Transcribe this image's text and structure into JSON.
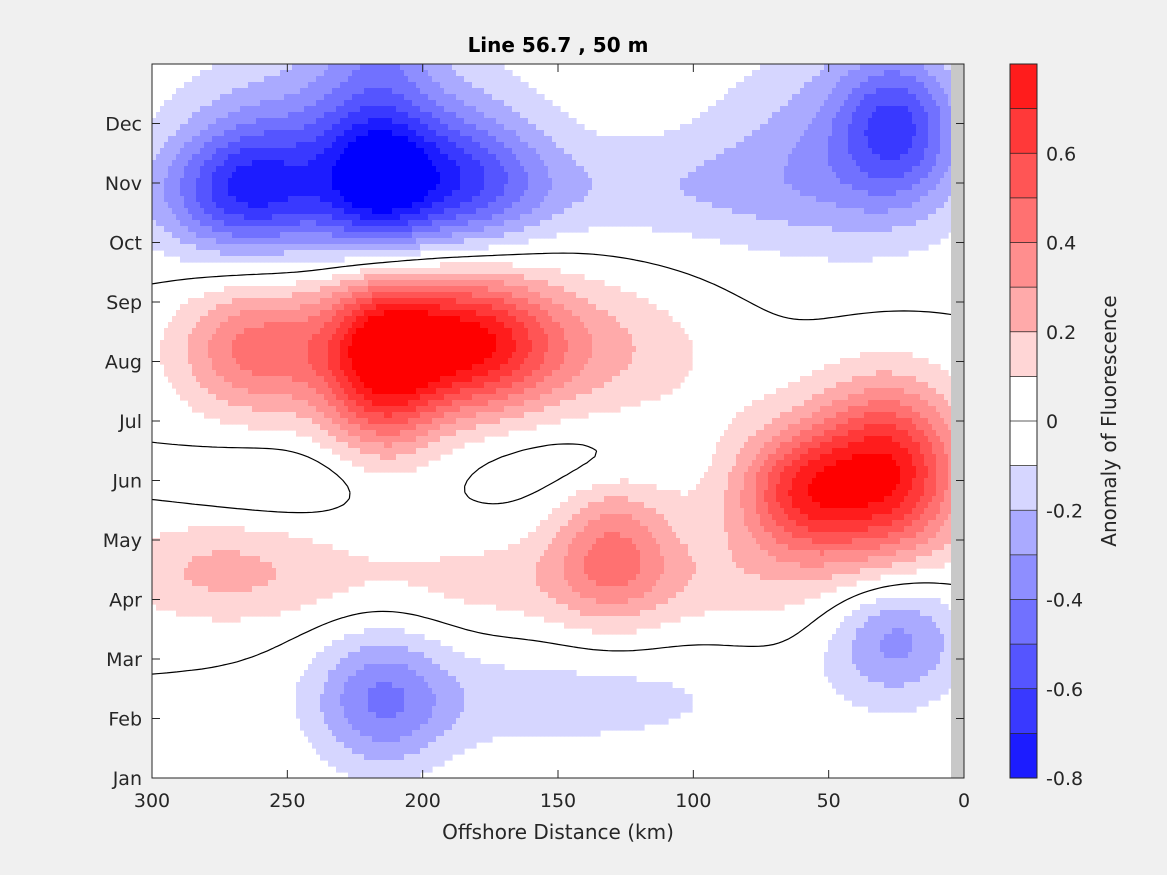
{
  "chart_data": {
    "type": "heatmap",
    "subtype": "filled-contour",
    "title": "Line 56.7 , 50 m",
    "xlabel": "Offshore Distance (km)",
    "ylabel": "",
    "x_direction": "reversed",
    "xlim": [
      300,
      0
    ],
    "x_ticks": [
      300,
      250,
      200,
      150,
      100,
      50,
      0
    ],
    "y_categories": [
      "Jan",
      "Feb",
      "Mar",
      "Apr",
      "May",
      "Jun",
      "Jul",
      "Aug",
      "Sep",
      "Oct",
      "Nov",
      "Dec"
    ],
    "colorbar": {
      "label": "Anomaly of Fluorescence",
      "clim": [
        -0.8,
        0.8
      ],
      "ticks": [
        -0.8,
        -0.6,
        -0.4,
        -0.2,
        0,
        0.2,
        0.4,
        0.6
      ],
      "level_step": 0.1,
      "colors": {
        "neg": [
          "#0000ff",
          "#1c1cff",
          "#3939ff",
          "#5555ff",
          "#7171ff",
          "#8e8eff",
          "#aaaaff",
          "#d6d6ff"
        ],
        "zero": "#ffffff",
        "pos": [
          "#ffd6d6",
          "#ffaaaa",
          "#ff8e8e",
          "#ff7171",
          "#ff5555",
          "#ff3939",
          "#ff1c1c",
          "#ff0000"
        ]
      }
    },
    "contour_line_level": 0,
    "features": [
      {
        "x": 217,
        "y": 10.0,
        "peak": -0.65,
        "rx": 22,
        "ry": 1.4
      },
      {
        "x": 262,
        "y": 10.0,
        "peak": -0.45,
        "rx": 28,
        "ry": 1.1
      },
      {
        "x": 185,
        "y": 10.0,
        "peak": -0.45,
        "rx": 30,
        "ry": 1.1
      },
      {
        "x": 225,
        "y": 11.2,
        "peak": -0.25,
        "rx": 60,
        "ry": 1.4
      },
      {
        "x": 270,
        "y": 9.7,
        "peak": -0.25,
        "rx": 40,
        "ry": 1.0
      },
      {
        "x": 215,
        "y": 12.4,
        "peak": -0.2,
        "rx": 20,
        "ry": 0.8
      },
      {
        "x": 25,
        "y": 11.0,
        "peak": -0.45,
        "rx": 22,
        "ry": 1.2
      },
      {
        "x": 45,
        "y": 10.6,
        "peak": -0.25,
        "rx": 50,
        "ry": 1.8
      },
      {
        "x": 120,
        "y": 9.9,
        "peak": -0.15,
        "rx": 90,
        "ry": 0.9
      },
      {
        "x": 215,
        "y": 7.1,
        "peak": 0.78,
        "rx": 22,
        "ry": 1.5
      },
      {
        "x": 183,
        "y": 7.3,
        "peak": 0.5,
        "rx": 28,
        "ry": 1.1
      },
      {
        "x": 260,
        "y": 7.2,
        "peak": 0.45,
        "rx": 30,
        "ry": 1.1
      },
      {
        "x": 175,
        "y": 7.3,
        "peak": 0.3,
        "rx": 40,
        "ry": 1.2
      },
      {
        "x": 130,
        "y": 7.2,
        "peak": 0.15,
        "rx": 40,
        "ry": 1.1
      },
      {
        "x": 28,
        "y": 5.2,
        "peak": 0.65,
        "rx": 26,
        "ry": 1.4
      },
      {
        "x": 60,
        "y": 4.8,
        "peak": 0.45,
        "rx": 22,
        "ry": 1.0
      },
      {
        "x": 50,
        "y": 4.7,
        "peak": 0.2,
        "rx": 50,
        "ry": 1.6
      },
      {
        "x": 130,
        "y": 3.9,
        "peak": 0.35,
        "rx": 22,
        "ry": 1.2
      },
      {
        "x": 150,
        "y": 3.3,
        "peak": 0.15,
        "rx": 100,
        "ry": 0.8
      },
      {
        "x": 275,
        "y": 3.5,
        "peak": 0.2,
        "rx": 40,
        "ry": 0.9
      },
      {
        "x": 215,
        "y": 1.3,
        "peak": -0.35,
        "rx": 25,
        "ry": 1.2
      },
      {
        "x": 150,
        "y": 1.3,
        "peak": -0.15,
        "rx": 80,
        "ry": 0.9
      },
      {
        "x": 25,
        "y": 2.4,
        "peak": -0.35,
        "rx": 25,
        "ry": 1.1
      },
      {
        "x": 255,
        "y": 5.0,
        "peak": -0.12,
        "rx": 40,
        "ry": 0.6
      },
      {
        "x": 140,
        "y": 5.3,
        "peak": -0.1,
        "rx": 40,
        "ry": 0.7
      }
    ]
  }
}
